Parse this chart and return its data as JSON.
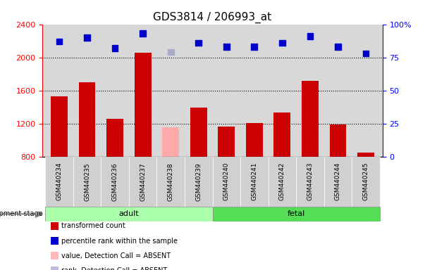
{
  "title": "GDS3814 / 206993_at",
  "samples": [
    "GSM440234",
    "GSM440235",
    "GSM440236",
    "GSM440237",
    "GSM440238",
    "GSM440239",
    "GSM440240",
    "GSM440241",
    "GSM440242",
    "GSM440243",
    "GSM440244",
    "GSM440245"
  ],
  "bar_values": [
    1530,
    1700,
    1260,
    2060,
    1155,
    1390,
    1160,
    1210,
    1330,
    1720,
    1190,
    850
  ],
  "bar_colors": [
    "#cc0000",
    "#cc0000",
    "#cc0000",
    "#cc0000",
    "#ffaaaa",
    "#cc0000",
    "#cc0000",
    "#cc0000",
    "#cc0000",
    "#cc0000",
    "#cc0000",
    "#cc0000"
  ],
  "scatter_values": [
    87,
    90,
    82,
    93,
    79,
    86,
    83,
    83,
    86,
    91,
    83,
    78
  ],
  "scatter_colors": [
    "#0000cc",
    "#0000cc",
    "#0000cc",
    "#0000cc",
    "#aaaacc",
    "#0000cc",
    "#0000cc",
    "#0000cc",
    "#0000cc",
    "#0000cc",
    "#0000cc",
    "#0000cc"
  ],
  "ylim_left": [
    800,
    2400
  ],
  "ylim_right": [
    0,
    100
  ],
  "yticks_left": [
    800,
    1200,
    1600,
    2000,
    2400
  ],
  "yticks_right": [
    0,
    25,
    50,
    75,
    100
  ],
  "grid_values": [
    1200,
    1600,
    2000
  ],
  "adult_count": 6,
  "fetal_count": 6,
  "adult_color": "#aaffaa",
  "fetal_color": "#55dd55",
  "stage_label": "development stage",
  "legend_items": [
    {
      "label": "transformed count",
      "color": "#cc0000"
    },
    {
      "label": "percentile rank within the sample",
      "color": "#0000cc"
    },
    {
      "label": "value, Detection Call = ABSENT",
      "color": "#ffbbbb"
    },
    {
      "label": "rank, Detection Call = ABSENT",
      "color": "#bbbbdd"
    }
  ],
  "bar_width": 0.6,
  "scatter_size": 40,
  "bg_color": "#ffffff",
  "plot_bg_color": "#d8d8d8",
  "tick_label_fontsize": 7,
  "title_fontsize": 11
}
